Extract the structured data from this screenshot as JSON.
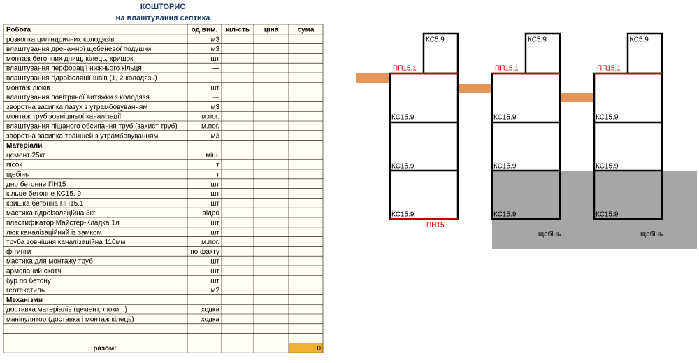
{
  "header": {
    "title": "КОШТОРИС",
    "subtitle": "на влаштування септика"
  },
  "table": {
    "columns": [
      "Робота",
      "од.вим.",
      "кіл-сть",
      "ціна",
      "сума"
    ],
    "rows": [
      {
        "name": "розкопка циліндричних колодязів",
        "unit": "м3"
      },
      {
        "name": "влаштування дренажної щебеневої подушки",
        "unit": "м3"
      },
      {
        "name": "монтаж бетонних днищ, кілець, кришок",
        "unit": "шт"
      },
      {
        "name": "влаштування перфорації нижнього кільця",
        "unit": "---"
      },
      {
        "name": "влаштування гідроізоляції швів (1, 2 колодязь)",
        "unit": "---"
      },
      {
        "name": "монтаж люків",
        "unit": "шт"
      },
      {
        "name": "влаштування повітряної витяжки з колодязя",
        "unit": "---"
      },
      {
        "name": "зворотна засипка пазух з утрамбовуванням",
        "unit": "м3"
      },
      {
        "name": "монтаж труб зовнішньої каналізації",
        "unit": "м.пог."
      },
      {
        "name": "влаштування піщаного обсипання труб (захист труб)",
        "unit": "м.пог."
      },
      {
        "name": "зворотна засипка траншей з утрамбовуванням",
        "unit": "м3"
      },
      {
        "section": "Матеріали"
      },
      {
        "name": "цемент 25кг",
        "unit": "міш."
      },
      {
        "name": "пісок",
        "unit": "т"
      },
      {
        "name": "щебінь",
        "unit": "т"
      },
      {
        "name": "дно бетонне ПН15",
        "unit": "шт"
      },
      {
        "name": "кільце бетонне КС15. 9",
        "unit": "шт"
      },
      {
        "name": "кришка бетонна ПП15.1",
        "unit": "шт"
      },
      {
        "name": "мастика гідроізоляційна 3кг",
        "unit": "відро"
      },
      {
        "name": "пластифікатор Майстер-Кладка 1л",
        "unit": "шт"
      },
      {
        "name": "люк каналізаційний із замком",
        "unit": "шт"
      },
      {
        "name": "труба зовнішня каналізаційна 110мм",
        "unit": "м.пог."
      },
      {
        "name": "фітинги",
        "unit": "по факту"
      },
      {
        "name": "мастика для монтажу труб",
        "unit": "шт"
      },
      {
        "name": "армований скотч",
        "unit": "шт"
      },
      {
        "name": "бур по бетону",
        "unit": "шт"
      },
      {
        "name": "геотекстиль",
        "unit": "м2"
      },
      {
        "section": "Механізми"
      },
      {
        "name": "доставка матеріалів (цемент, люки...)",
        "unit": "ходка"
      },
      {
        "name": "маніпулятор (доставка і монтаж кілець)",
        "unit": "ходка"
      }
    ],
    "total": {
      "label": "разом:",
      "value": 0
    }
  },
  "diagram": {
    "wells": [
      {
        "cap": "КС5.9",
        "cover": "ПП15.1",
        "rings": [
          "КС15.9",
          "КС15.9",
          "КС15.9"
        ],
        "bottom": "ПН15"
      },
      {
        "cap": "КС5.9",
        "cover": "ПП15.1",
        "rings": [
          "КС15.9",
          "КС15.9",
          "КС15.9"
        ],
        "base": "щебінь"
      },
      {
        "cap": "КС5.9",
        "cover": "ПП15.1",
        "rings": [
          "КС15.9",
          "КС15.9",
          "КС15.9"
        ],
        "base": "щебінь"
      }
    ]
  }
}
